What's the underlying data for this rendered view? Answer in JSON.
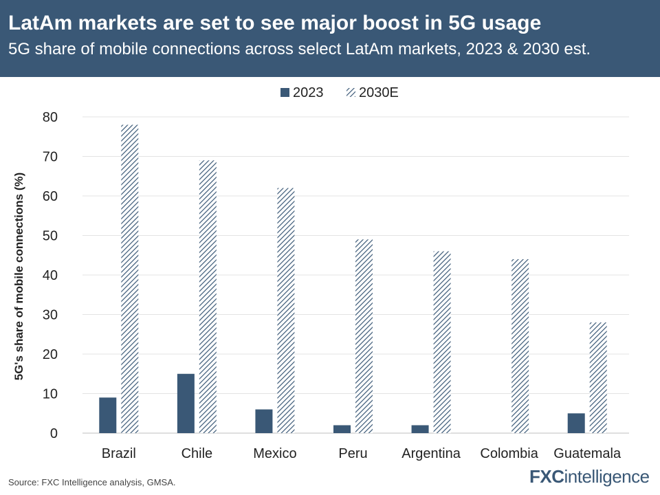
{
  "header": {
    "title": "LatAm markets are set to see major boost in 5G usage",
    "subtitle": "5G share of mobile connections across select LatAm markets, 2023 & 2030 est."
  },
  "chart_data": {
    "type": "bar",
    "title": "LatAm markets are set to see major boost in 5G usage",
    "subtitle": "5G share of mobile connections across select LatAm markets, 2023 & 2030 est.",
    "xlabel": "",
    "ylabel": "5G's share of mobile connections (%)",
    "ylim": [
      0,
      80
    ],
    "yticks": [
      0,
      10,
      20,
      30,
      40,
      50,
      60,
      70,
      80
    ],
    "grid": true,
    "legend_position": "top-center",
    "categories": [
      "Brazil",
      "Chile",
      "Mexico",
      "Peru",
      "Argentina",
      "Colombia",
      "Guatemala"
    ],
    "series": [
      {
        "name": "2023",
        "style": "solid",
        "color": "#3a5876",
        "values": [
          9,
          15,
          6,
          2,
          2,
          0,
          5
        ]
      },
      {
        "name": "2030E",
        "style": "hatched",
        "color": "#3a5876",
        "values": [
          78,
          69,
          62,
          49,
          46,
          44,
          28
        ]
      }
    ]
  },
  "footer": {
    "source": "Source: FXC Intelligence analysis, GMSA.",
    "logo_part1": "FXC",
    "logo_part2": "intelligence"
  }
}
